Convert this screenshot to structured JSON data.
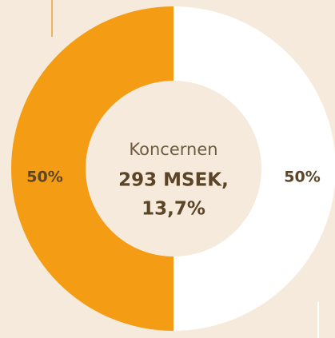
{
  "chart_data": {
    "type": "donut",
    "values": [
      50,
      50
    ],
    "value_labels": [
      "50%",
      "50%"
    ],
    "colors": [
      "#f39c14",
      "#ffffff"
    ],
    "center_text": [
      "Koncernen",
      "293 MSEK,",
      "13,7%"
    ]
  }
}
